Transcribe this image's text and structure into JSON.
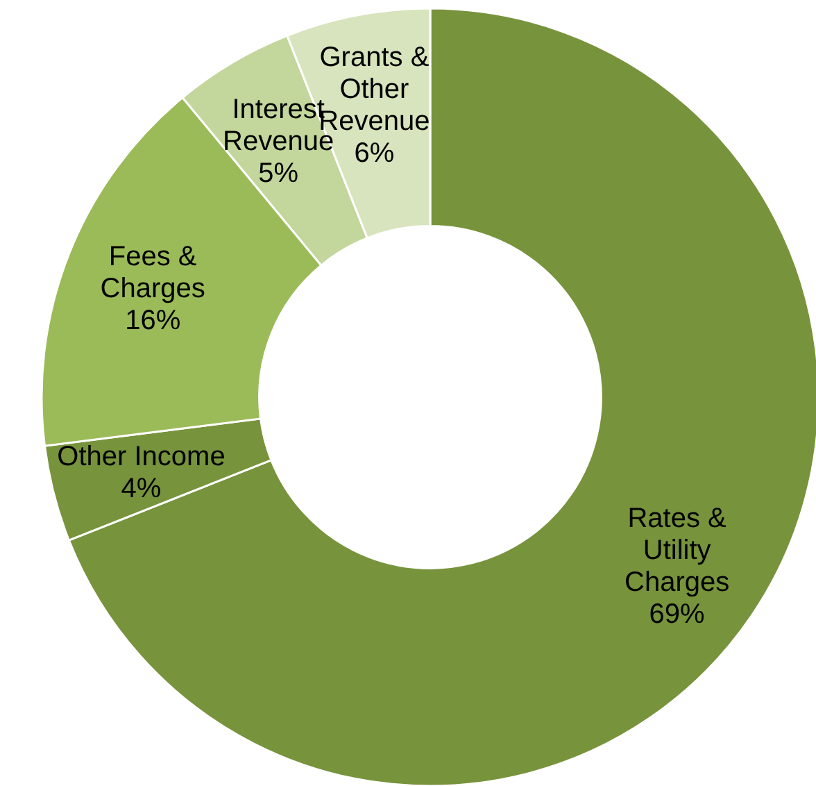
{
  "chart_data": {
    "type": "donut",
    "categories": [
      "Rates & Utility Charges",
      "Other Income",
      "Fees & Charges",
      "Interest Revenue",
      "Grants & Other Revenue"
    ],
    "values": [
      69,
      4,
      16,
      5,
      6
    ],
    "value_labels": [
      "69%",
      "4%",
      "16%",
      "5%",
      "6%"
    ],
    "colors": [
      "#77933c",
      "#77933c",
      "#9bbb59",
      "#c3d69b",
      "#d7e4bd"
    ]
  }
}
